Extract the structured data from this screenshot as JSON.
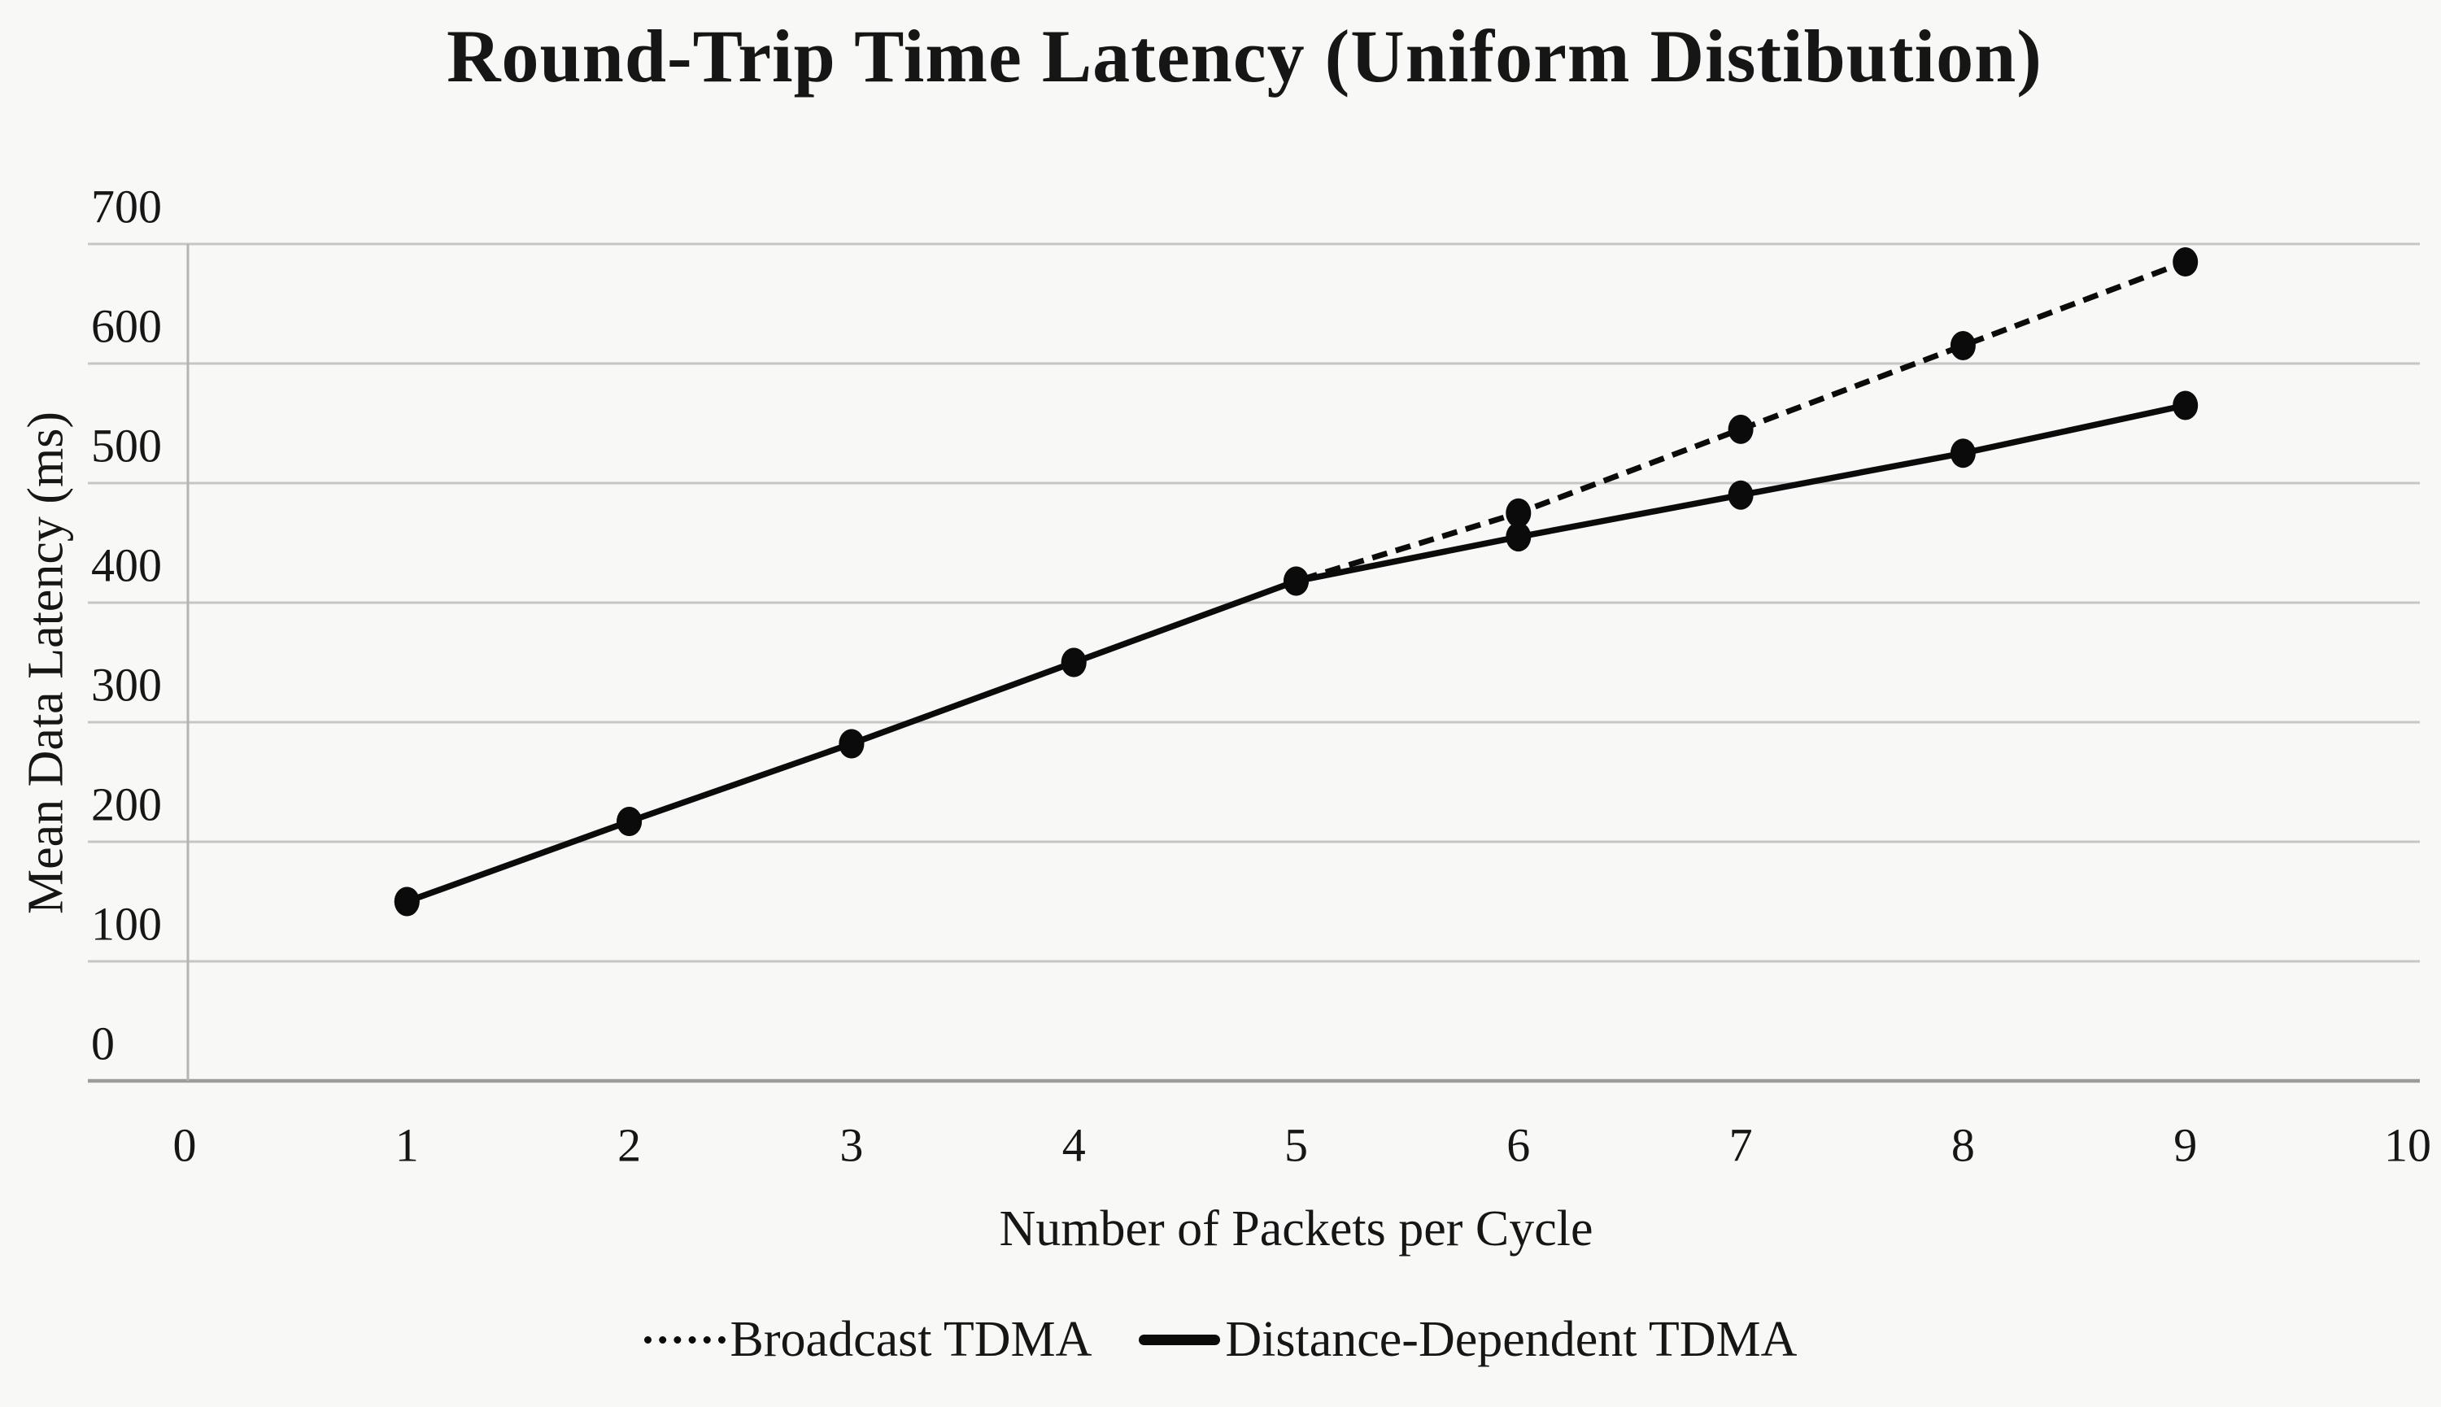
{
  "page": {
    "background": "#f8f8f6"
  },
  "chart_data": {
    "type": "line",
    "title": "Round-Trip Time Latency (Uniform Distibution)",
    "xlabel": "Number of Packets per Cycle",
    "ylabel": "Mean Data Latency (ms)",
    "xlim": [
      0,
      10
    ],
    "ylim": [
      0,
      700
    ],
    "xticks": [
      0,
      1,
      2,
      3,
      4,
      5,
      6,
      7,
      8,
      9,
      10
    ],
    "yticks": [
      0,
      100,
      200,
      300,
      400,
      500,
      600,
      700
    ],
    "grid": "horizontal",
    "legend_position": "bottom-center",
    "x": [
      1,
      2,
      3,
      4,
      5,
      6,
      7,
      8,
      9
    ],
    "series": [
      {
        "name": "Broadcast TDMA",
        "style": "dotted",
        "values": [
          150,
          217,
          282,
          350,
          418,
          475,
          545,
          615,
          685
        ]
      },
      {
        "name": "Distance-Dependent TDMA",
        "style": "solid",
        "values": [
          150,
          217,
          282,
          350,
          418,
          455,
          490,
          525,
          565
        ]
      }
    ],
    "colors": {
      "line": "#0b0b0b",
      "marker": "#0b0b0b",
      "gridline": "#c6c6c4",
      "zero_axis_line": "#9c9c9a",
      "vertical_axis_line": "#b4b4b2",
      "text": "#161616"
    }
  }
}
